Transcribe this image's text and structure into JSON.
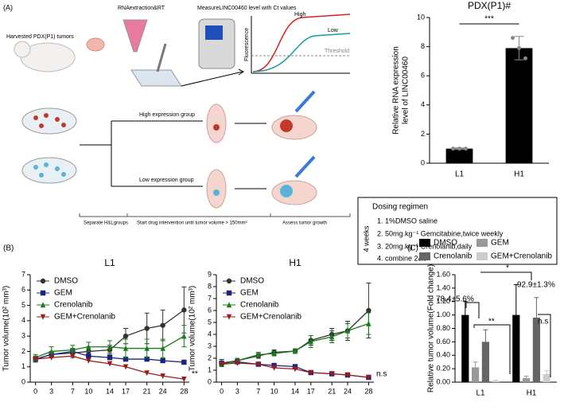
{
  "diagram": {
    "panel_label": "(A)",
    "harvest": "Harvested PDX(P1) tumors",
    "rna": "RNAextraction&RT",
    "measure": "MeasureLINC00460 level with Ct values",
    "curve_high": "High",
    "curve_low": "Low",
    "threshold": "Threshold",
    "fluorescence": "Fluorescence",
    "high_group": "High expression group",
    "low_group": "Low expression group",
    "step1": "Separate H&Lgroups",
    "step2": "Start drug intervention until tumor volume > 150mm³",
    "step3": "Assess tumor growth"
  },
  "dosing": {
    "title": "Dosing regimen",
    "duration": "4 weeks",
    "items": [
      "1. 1%DMSO saline",
      "2. 50mg.kg⁻¹ Gemcitabine,twice weekly",
      "3. 20mg.kg⁻¹ Crenolanib,daily",
      "4. combine 2&3"
    ]
  },
  "panels": {
    "b": "(B)",
    "c": "(C)"
  },
  "chart_data": [
    {
      "type": "bar",
      "title": "PDX(P1)#",
      "ylabel": [
        "Relative RNA expression",
        "level of LINC00460"
      ],
      "categories": [
        "L1",
        "H1"
      ],
      "values": [
        1.0,
        7.9
      ],
      "errors": [
        0.05,
        0.8
      ],
      "points": [
        [
          1.0,
          1.0,
          1.0
        ],
        [
          8.6,
          7.9,
          7.2
        ]
      ],
      "color": "#000000",
      "ylim": [
        0,
        10
      ],
      "yticks": [
        0,
        2,
        4,
        6,
        8,
        10
      ],
      "annotation": "***"
    },
    {
      "type": "line",
      "title": "L1",
      "ylabel": "Tumor volume(10² mm³)",
      "x": [
        0,
        3,
        7,
        10,
        14,
        17,
        21,
        24,
        28
      ],
      "xlim": [
        -1,
        29
      ],
      "xticks": [
        0,
        3,
        7,
        10,
        14,
        17,
        21,
        24,
        28
      ],
      "ylim": [
        0,
        7
      ],
      "yticks": [
        0,
        1,
        2,
        3,
        4,
        5,
        6,
        7
      ],
      "annotation": "**",
      "series": [
        {
          "name": "DMSO",
          "color": "#333333",
          "marker": "circle",
          "values": [
            1.5,
            1.8,
            1.9,
            2.0,
            2.1,
            3.0,
            3.5,
            3.7,
            4.7
          ],
          "errors": [
            0.2,
            0.2,
            0.3,
            0.3,
            0.3,
            0.5,
            1.0,
            1.0,
            1.5
          ]
        },
        {
          "name": "GEM",
          "color": "#1a237e",
          "marker": "square",
          "values": [
            1.5,
            1.8,
            2.0,
            1.7,
            1.6,
            1.5,
            1.5,
            1.4,
            1.3
          ]
        },
        {
          "name": "Crenolanib",
          "color": "#1b7a1b",
          "marker": "triangle",
          "values": [
            1.6,
            2.0,
            2.1,
            2.3,
            2.3,
            2.2,
            2.2,
            2.2,
            3.0
          ],
          "errors": [
            0.2,
            0.3,
            0.3,
            0.3,
            0.4,
            0.6,
            0.6,
            0.6,
            0.7
          ]
        },
        {
          "name": "GEM+Crenolanib",
          "color": "#9b1b1b",
          "marker": "triangle-down",
          "values": [
            1.5,
            1.6,
            1.7,
            1.4,
            1.2,
            1.0,
            0.6,
            0.4,
            0.2
          ]
        }
      ]
    },
    {
      "type": "line",
      "title": "H1",
      "ylabel": "Tumor volume(10² mm³)",
      "x": [
        0,
        3,
        7,
        10,
        14,
        17,
        21,
        24,
        28
      ],
      "xlim": [
        -1,
        29
      ],
      "xticks": [
        0,
        3,
        7,
        10,
        14,
        17,
        21,
        24,
        28
      ],
      "ylim": [
        0,
        9
      ],
      "yticks": [
        0,
        1,
        2,
        3,
        4,
        5,
        6,
        7,
        8,
        9
      ],
      "annotation": "n.s",
      "series": [
        {
          "name": "DMSO",
          "color": "#333333",
          "marker": "circle",
          "values": [
            1.6,
            1.8,
            2.2,
            2.5,
            2.6,
            3.5,
            4.0,
            4.3,
            6.0
          ],
          "errors": [
            0.3,
            0.2,
            0.2,
            0.2,
            0.2,
            0.4,
            0.5,
            0.8,
            2.3
          ]
        },
        {
          "name": "GEM",
          "color": "#1a237e",
          "marker": "square",
          "values": [
            1.6,
            1.7,
            1.5,
            1.4,
            1.3,
            0.8,
            0.7,
            0.6,
            0.4
          ]
        },
        {
          "name": "Crenolanib",
          "color": "#1b7a1b",
          "marker": "triangle",
          "values": [
            1.5,
            1.8,
            2.3,
            2.4,
            2.6,
            3.4,
            3.8,
            4.3,
            4.9
          ],
          "errors": [
            0.2,
            0.2,
            0.2,
            0.2,
            0.2,
            0.5,
            0.5,
            0.6,
            0.9
          ]
        },
        {
          "name": "GEM+Crenolanib",
          "color": "#9b1b1b",
          "marker": "triangle-down",
          "values": [
            1.5,
            1.6,
            1.5,
            1.2,
            1.1,
            0.8,
            0.7,
            0.6,
            0.4
          ]
        }
      ]
    },
    {
      "type": "bar",
      "ylabel": "Relative tumor volume(Fold change)",
      "categories": [
        "L1",
        "H1"
      ],
      "ylim": [
        0,
        1.6
      ],
      "yticks": [
        {
          "value": 0,
          "label": "0.00"
        },
        {
          "value": 0.2,
          "label": "0.20"
        },
        {
          "value": 0.4,
          "label": "0.40"
        },
        {
          "value": 0.6,
          "label": "0.60"
        },
        {
          "value": 0.8,
          "label": "0.80"
        },
        {
          "value": 1.0,
          "label": "1.00"
        },
        {
          "value": 1.2,
          "label": "1.20"
        },
        {
          "value": 1.4,
          "label": "1.40"
        },
        {
          "value": 1.6,
          "label": "1.60"
        }
      ],
      "annotations": [
        "78.4±5.6%",
        "92.9±1.3%",
        "**",
        "*",
        "n.s"
      ],
      "series": [
        {
          "name": "DMSO",
          "color": "#000000",
          "values": [
            1.0,
            1.0
          ],
          "errors": [
            0.2,
            0.45
          ]
        },
        {
          "name": "GEM",
          "color": "#999999",
          "values": [
            0.22,
            0.06
          ],
          "errors": [
            0.08,
            0.03
          ]
        },
        {
          "name": "Crenolanib",
          "color": "#666666",
          "values": [
            0.6,
            0.96
          ],
          "errors": [
            0.18,
            0.3
          ]
        },
        {
          "name": "GEM+Crenolanib",
          "color": "#cccccc",
          "values": [
            0.02,
            0.12
          ],
          "errors": [
            0.01,
            0.05
          ]
        }
      ]
    }
  ]
}
